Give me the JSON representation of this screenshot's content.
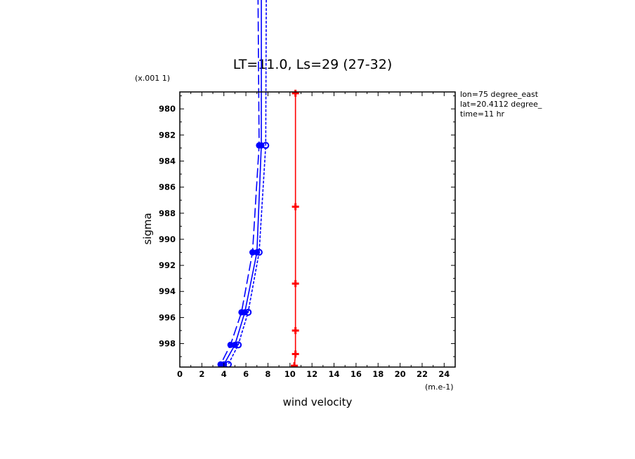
{
  "chart_data": {
    "type": "line",
    "title": "LT=11.0, Ls=29 (27-32)",
    "xlabel": "wind velocity",
    "ylabel": "sigma",
    "x_unit": "(m.e-1)",
    "y_unit": "(x.001 1)",
    "annotations": [
      "lon=75 degree_east",
      "lat=20.4112 degree_",
      "time=11 hr"
    ],
    "xlim": [
      0,
      25
    ],
    "ylim": [
      999.8,
      978.7
    ],
    "x_ticks": [
      "0",
      "2",
      "4",
      "6",
      "8",
      "10",
      "12",
      "14",
      "16",
      "18",
      "20",
      "22",
      "24"
    ],
    "y_ticks": [
      "980",
      "982",
      "984",
      "986",
      "988",
      "990",
      "992",
      "994",
      "996",
      "998"
    ],
    "grid": false,
    "series": [
      {
        "color": "#0000ff",
        "dash": "long-dash",
        "marker": "filled-circle",
        "points": [
          [
            7.0,
            960.0
          ],
          [
            7.2,
            982.8
          ],
          [
            6.6,
            991.0
          ],
          [
            5.6,
            995.6
          ],
          [
            4.6,
            998.1
          ],
          [
            3.7,
            999.6
          ]
        ]
      },
      {
        "color": "#0000ff",
        "dash": "solid",
        "marker": "filled-circle",
        "points": [
          [
            7.4,
            960.0
          ],
          [
            7.4,
            982.8
          ],
          [
            7.0,
            991.0
          ],
          [
            5.9,
            995.6
          ],
          [
            5.0,
            998.1
          ],
          [
            4.0,
            999.6
          ]
        ]
      },
      {
        "color": "#0000ff",
        "dash": "short-dash",
        "marker": "open-circle",
        "points": [
          [
            7.9,
            960.0
          ],
          [
            7.8,
            982.8
          ],
          [
            7.2,
            991.0
          ],
          [
            6.2,
            995.6
          ],
          [
            5.3,
            998.1
          ],
          [
            4.4,
            999.6
          ]
        ]
      },
      {
        "color": "#ff0000",
        "dash": "solid",
        "marker": "cross",
        "points": [
          [
            10.5,
            978.8
          ],
          [
            10.5,
            987.5
          ],
          [
            10.5,
            993.4
          ],
          [
            10.5,
            997.0
          ],
          [
            10.5,
            998.8
          ],
          [
            10.4,
            999.7
          ]
        ]
      }
    ]
  }
}
